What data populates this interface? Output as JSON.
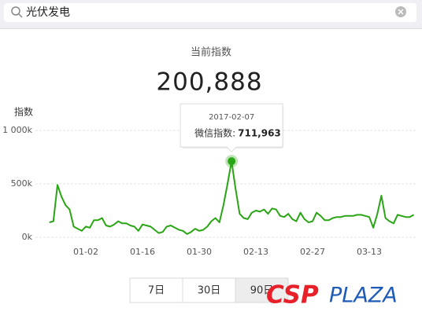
{
  "search": {
    "query": "光伏发电"
  },
  "header": {
    "title": "当前指数",
    "current_index": "200,888"
  },
  "chart_data": {
    "type": "line",
    "y_label": "指数",
    "color": "#2aa515",
    "grid": true,
    "ylim": [
      0,
      1000000
    ],
    "yticks": [
      {
        "value": 0,
        "label": "0k"
      },
      {
        "value": 500000,
        "label": "500k"
      },
      {
        "value": 1000000,
        "label": "1 000k"
      }
    ],
    "categories": [
      null,
      null,
      null,
      null,
      null,
      null,
      null,
      null,
      null,
      "01-02",
      null,
      null,
      null,
      null,
      null,
      null,
      null,
      null,
      null,
      null,
      null,
      null,
      null,
      "01-16",
      null,
      null,
      null,
      null,
      null,
      null,
      null,
      null,
      null,
      null,
      null,
      null,
      null,
      "01-30",
      null,
      null,
      null,
      null,
      null,
      null,
      null,
      null,
      null,
      null,
      null,
      null,
      null,
      "02-13",
      null,
      null,
      null,
      null,
      null,
      null,
      null,
      null,
      null,
      null,
      null,
      null,
      null,
      "02-27",
      null,
      null,
      null,
      null,
      null,
      null,
      null,
      null,
      null,
      null,
      null,
      null,
      null,
      "03-13",
      null,
      null,
      null,
      null,
      null,
      null,
      null,
      null,
      null,
      null,
      null
    ],
    "values": [
      140000,
      150000,
      490000,
      380000,
      300000,
      260000,
      100000,
      80000,
      60000,
      100000,
      90000,
      160000,
      160000,
      180000,
      110000,
      100000,
      120000,
      150000,
      130000,
      130000,
      110000,
      100000,
      60000,
      120000,
      110000,
      100000,
      70000,
      40000,
      50000,
      100000,
      110000,
      90000,
      70000,
      60000,
      30000,
      50000,
      80000,
      60000,
      70000,
      100000,
      150000,
      180000,
      140000,
      300000,
      500000,
      711963,
      450000,
      220000,
      180000,
      170000,
      230000,
      250000,
      240000,
      260000,
      220000,
      270000,
      260000,
      200000,
      190000,
      220000,
      170000,
      150000,
      230000,
      170000,
      140000,
      150000,
      230000,
      200000,
      160000,
      160000,
      180000,
      190000,
      190000,
      200000,
      200000,
      200000,
      210000,
      210000,
      200000,
      190000,
      90000,
      220000,
      390000,
      180000,
      150000,
      130000,
      210000,
      200000,
      190000,
      190000,
      210000
    ],
    "value_labels": [
      null,
      null,
      null,
      null,
      null,
      null,
      null,
      null,
      null,
      null,
      null,
      null,
      null,
      null,
      null,
      null,
      null,
      null,
      null,
      null,
      null,
      null,
      null,
      null,
      null,
      null,
      null,
      null,
      null,
      null,
      null,
      null,
      null,
      null,
      null,
      null,
      null,
      null,
      null,
      null,
      null,
      null,
      null,
      null,
      null,
      "711,963",
      null,
      null,
      null,
      null,
      null,
      null,
      null,
      null,
      null,
      null,
      null,
      null,
      null,
      null,
      null,
      null,
      null,
      null,
      null,
      null,
      null,
      null,
      null,
      null,
      null,
      null,
      null,
      null,
      null,
      null,
      null,
      null,
      null,
      null,
      null,
      null,
      null,
      null,
      null,
      null,
      null,
      null,
      null,
      null,
      null
    ],
    "tooltip": {
      "title": "2017-02-07",
      "label": "微信指数:"
    }
  },
  "range_buttons": [
    "7日",
    "30日",
    "90日"
  ],
  "selected_range": "90日",
  "watermark": {
    "part1": "CSP",
    "part2": "PLAZA"
  }
}
